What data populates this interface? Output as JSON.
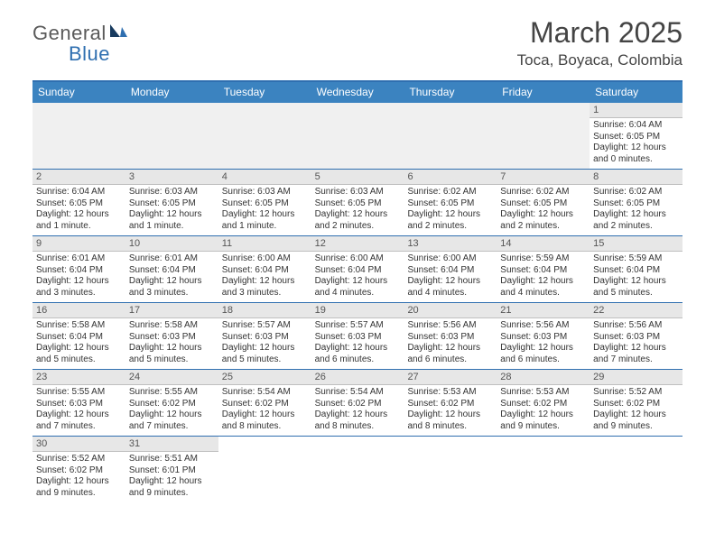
{
  "logo": {
    "text_dark": "General",
    "text_blue": "Blue"
  },
  "header": {
    "month_title": "March 2025",
    "location": "Toca, Boyaca, Colombia"
  },
  "colors": {
    "header_blue": "#3b83c0",
    "rule_blue": "#2f6fb0",
    "datenum_bg": "#e7e7e7",
    "text": "#333333",
    "title_text": "#444444"
  },
  "day_names": [
    "Sunday",
    "Monday",
    "Tuesday",
    "Wednesday",
    "Thursday",
    "Friday",
    "Saturday"
  ],
  "weeks": [
    [
      null,
      null,
      null,
      null,
      null,
      null,
      {
        "date": "1",
        "sunrise": "Sunrise: 6:04 AM",
        "sunset": "Sunset: 6:05 PM",
        "daylight": "Daylight: 12 hours and 0 minutes."
      }
    ],
    [
      {
        "date": "2",
        "sunrise": "Sunrise: 6:04 AM",
        "sunset": "Sunset: 6:05 PM",
        "daylight": "Daylight: 12 hours and 1 minute."
      },
      {
        "date": "3",
        "sunrise": "Sunrise: 6:03 AM",
        "sunset": "Sunset: 6:05 PM",
        "daylight": "Daylight: 12 hours and 1 minute."
      },
      {
        "date": "4",
        "sunrise": "Sunrise: 6:03 AM",
        "sunset": "Sunset: 6:05 PM",
        "daylight": "Daylight: 12 hours and 1 minute."
      },
      {
        "date": "5",
        "sunrise": "Sunrise: 6:03 AM",
        "sunset": "Sunset: 6:05 PM",
        "daylight": "Daylight: 12 hours and 2 minutes."
      },
      {
        "date": "6",
        "sunrise": "Sunrise: 6:02 AM",
        "sunset": "Sunset: 6:05 PM",
        "daylight": "Daylight: 12 hours and 2 minutes."
      },
      {
        "date": "7",
        "sunrise": "Sunrise: 6:02 AM",
        "sunset": "Sunset: 6:05 PM",
        "daylight": "Daylight: 12 hours and 2 minutes."
      },
      {
        "date": "8",
        "sunrise": "Sunrise: 6:02 AM",
        "sunset": "Sunset: 6:05 PM",
        "daylight": "Daylight: 12 hours and 2 minutes."
      }
    ],
    [
      {
        "date": "9",
        "sunrise": "Sunrise: 6:01 AM",
        "sunset": "Sunset: 6:04 PM",
        "daylight": "Daylight: 12 hours and 3 minutes."
      },
      {
        "date": "10",
        "sunrise": "Sunrise: 6:01 AM",
        "sunset": "Sunset: 6:04 PM",
        "daylight": "Daylight: 12 hours and 3 minutes."
      },
      {
        "date": "11",
        "sunrise": "Sunrise: 6:00 AM",
        "sunset": "Sunset: 6:04 PM",
        "daylight": "Daylight: 12 hours and 3 minutes."
      },
      {
        "date": "12",
        "sunrise": "Sunrise: 6:00 AM",
        "sunset": "Sunset: 6:04 PM",
        "daylight": "Daylight: 12 hours and 4 minutes."
      },
      {
        "date": "13",
        "sunrise": "Sunrise: 6:00 AM",
        "sunset": "Sunset: 6:04 PM",
        "daylight": "Daylight: 12 hours and 4 minutes."
      },
      {
        "date": "14",
        "sunrise": "Sunrise: 5:59 AM",
        "sunset": "Sunset: 6:04 PM",
        "daylight": "Daylight: 12 hours and 4 minutes."
      },
      {
        "date": "15",
        "sunrise": "Sunrise: 5:59 AM",
        "sunset": "Sunset: 6:04 PM",
        "daylight": "Daylight: 12 hours and 5 minutes."
      }
    ],
    [
      {
        "date": "16",
        "sunrise": "Sunrise: 5:58 AM",
        "sunset": "Sunset: 6:04 PM",
        "daylight": "Daylight: 12 hours and 5 minutes."
      },
      {
        "date": "17",
        "sunrise": "Sunrise: 5:58 AM",
        "sunset": "Sunset: 6:03 PM",
        "daylight": "Daylight: 12 hours and 5 minutes."
      },
      {
        "date": "18",
        "sunrise": "Sunrise: 5:57 AM",
        "sunset": "Sunset: 6:03 PM",
        "daylight": "Daylight: 12 hours and 5 minutes."
      },
      {
        "date": "19",
        "sunrise": "Sunrise: 5:57 AM",
        "sunset": "Sunset: 6:03 PM",
        "daylight": "Daylight: 12 hours and 6 minutes."
      },
      {
        "date": "20",
        "sunrise": "Sunrise: 5:56 AM",
        "sunset": "Sunset: 6:03 PM",
        "daylight": "Daylight: 12 hours and 6 minutes."
      },
      {
        "date": "21",
        "sunrise": "Sunrise: 5:56 AM",
        "sunset": "Sunset: 6:03 PM",
        "daylight": "Daylight: 12 hours and 6 minutes."
      },
      {
        "date": "22",
        "sunrise": "Sunrise: 5:56 AM",
        "sunset": "Sunset: 6:03 PM",
        "daylight": "Daylight: 12 hours and 7 minutes."
      }
    ],
    [
      {
        "date": "23",
        "sunrise": "Sunrise: 5:55 AM",
        "sunset": "Sunset: 6:03 PM",
        "daylight": "Daylight: 12 hours and 7 minutes."
      },
      {
        "date": "24",
        "sunrise": "Sunrise: 5:55 AM",
        "sunset": "Sunset: 6:02 PM",
        "daylight": "Daylight: 12 hours and 7 minutes."
      },
      {
        "date": "25",
        "sunrise": "Sunrise: 5:54 AM",
        "sunset": "Sunset: 6:02 PM",
        "daylight": "Daylight: 12 hours and 8 minutes."
      },
      {
        "date": "26",
        "sunrise": "Sunrise: 5:54 AM",
        "sunset": "Sunset: 6:02 PM",
        "daylight": "Daylight: 12 hours and 8 minutes."
      },
      {
        "date": "27",
        "sunrise": "Sunrise: 5:53 AM",
        "sunset": "Sunset: 6:02 PM",
        "daylight": "Daylight: 12 hours and 8 minutes."
      },
      {
        "date": "28",
        "sunrise": "Sunrise: 5:53 AM",
        "sunset": "Sunset: 6:02 PM",
        "daylight": "Daylight: 12 hours and 9 minutes."
      },
      {
        "date": "29",
        "sunrise": "Sunrise: 5:52 AM",
        "sunset": "Sunset: 6:02 PM",
        "daylight": "Daylight: 12 hours and 9 minutes."
      }
    ],
    [
      {
        "date": "30",
        "sunrise": "Sunrise: 5:52 AM",
        "sunset": "Sunset: 6:02 PM",
        "daylight": "Daylight: 12 hours and 9 minutes."
      },
      {
        "date": "31",
        "sunrise": "Sunrise: 5:51 AM",
        "sunset": "Sunset: 6:01 PM",
        "daylight": "Daylight: 12 hours and 9 minutes."
      },
      null,
      null,
      null,
      null,
      null
    ]
  ]
}
